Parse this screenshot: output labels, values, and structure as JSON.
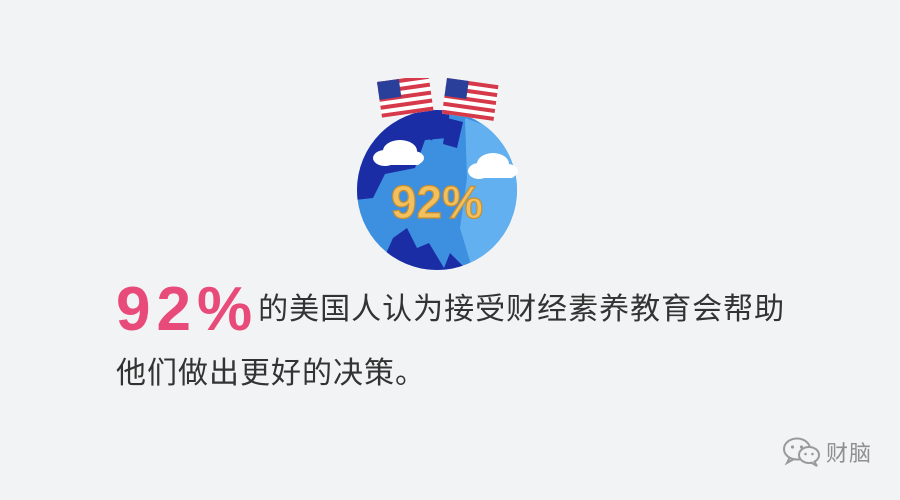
{
  "illustration": {
    "badge_text": "92%",
    "flags_icon": "us-flag-icon",
    "globe_icon": "globe-icon",
    "cloud_icon": "cloud-icon",
    "colors": {
      "ocean": "#3d8fe0",
      "land": "#1b2da5",
      "badge": "#f2c05f",
      "flag_red": "#d63a4a",
      "flag_blue": "#2a3f9a"
    }
  },
  "headline": {
    "stat": "92%",
    "line1_rest": "的美国人认为接受财经素养教育会帮助",
    "line2": "他们做出更好的决策。",
    "accent_color": "#e84b79"
  },
  "watermark": {
    "icon": "wechat-icon",
    "text": "财脑"
  }
}
